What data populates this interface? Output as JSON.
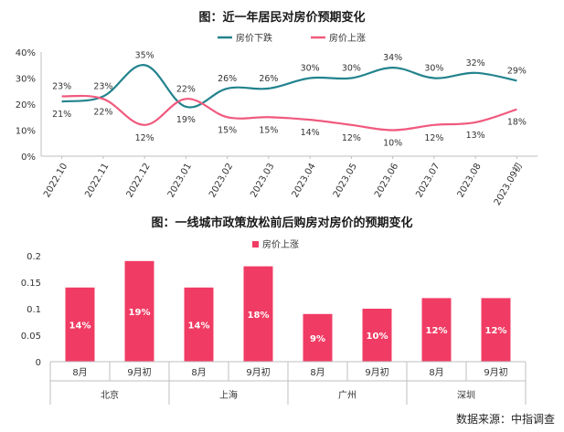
{
  "chart_data": [
    {
      "type": "line",
      "title": "图：近一年居民对房价预期变化",
      "categories": [
        "2022.10",
        "2022.11",
        "2022.12",
        "2023.01",
        "2023.02",
        "2023.03",
        "2023.04",
        "2023.05",
        "2023.06",
        "2023.07",
        "2023.08",
        "2023.09初"
      ],
      "ylim": [
        0,
        40
      ],
      "yticks": [
        "0%",
        "10%",
        "20%",
        "30%",
        "40%"
      ],
      "legend_position": "top-right",
      "series": [
        {
          "name": "房价下跌",
          "color": "#22838d",
          "values": [
            21,
            23,
            35,
            19,
            26,
            26,
            30,
            30,
            34,
            30,
            32,
            29
          ],
          "labels": [
            "21%",
            "23%",
            "35%",
            "19%",
            "26%",
            "26%",
            "30%",
            "30%",
            "34%",
            "30%",
            "32%",
            "29%"
          ]
        },
        {
          "name": "房价上涨",
          "color": "#f05a7e",
          "values": [
            23,
            22,
            12,
            22,
            15,
            15,
            14,
            12,
            10,
            12,
            13,
            18
          ],
          "labels": [
            "23%",
            "22%",
            "12%",
            "22%",
            "15%",
            "15%",
            "14%",
            "12%",
            "10%",
            "12%",
            "13%",
            "18%"
          ]
        }
      ]
    },
    {
      "type": "bar",
      "title": "图：一线城市政策放松前后购房对房价的预期变化",
      "legend_position": "top-center",
      "ylim": [
        0,
        0.2
      ],
      "yticks": [
        "0",
        "0.05",
        "0.1",
        "0.15",
        "0.2"
      ],
      "groups": [
        "北京",
        "上海",
        "广州",
        "深圳"
      ],
      "categories": [
        "8月",
        "9月初",
        "8月",
        "9月初",
        "8月",
        "9月初",
        "8月",
        "9月初"
      ],
      "series": [
        {
          "name": "房价上涨",
          "color": "#f03c64",
          "values": [
            0.14,
            0.19,
            0.14,
            0.18,
            0.09,
            0.1,
            0.12,
            0.12
          ],
          "labels": [
            "14%",
            "19%",
            "14%",
            "18%",
            "9%",
            "10%",
            "12%",
            "12%"
          ]
        }
      ]
    }
  ],
  "source": "数据来源：中指调查"
}
